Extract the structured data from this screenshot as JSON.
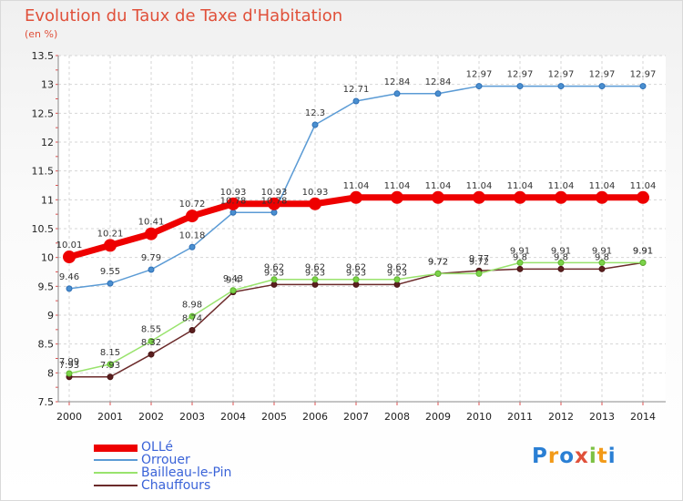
{
  "title": "Evolution du Taux de Taxe d'Habitation",
  "subtitle": "(en %)",
  "logo": "Proxiti",
  "chart_data": {
    "type": "line",
    "x": [
      "2000",
      "2001",
      "2002",
      "2003",
      "2004",
      "2005",
      "2006",
      "2007",
      "2008",
      "2009",
      "2010",
      "2011",
      "2012",
      "2013",
      "2014"
    ],
    "ylim": [
      7.5,
      13.5
    ],
    "yticks": [
      "7.5",
      "8",
      "8.5",
      "9",
      "9.5",
      "10",
      "10.5",
      "11",
      "11.5",
      "12",
      "12.5",
      "13",
      "13.5"
    ],
    "grid": true,
    "legend_position": "bottom-left",
    "series": [
      {
        "name": "OLLé",
        "color": "#ee0000",
        "values": [
          10.01,
          10.21,
          10.41,
          10.72,
          10.93,
          10.93,
          10.93,
          11.04,
          11.04,
          11.04,
          11.04,
          11.04,
          11.04,
          11.04,
          11.04
        ],
        "labels": [
          "10.01",
          "10.21",
          "10.41",
          "10.72",
          "10.93",
          "10.93",
          "10.93",
          "11.04",
          "11.04",
          "11.04",
          "11.04",
          "11.04",
          "11.04",
          "11.04",
          "11.04"
        ]
      },
      {
        "name": "Orrouer",
        "color": "#5b9bd5",
        "values": [
          9.46,
          9.55,
          9.79,
          10.18,
          10.78,
          10.78,
          12.3,
          12.71,
          12.84,
          12.84,
          12.97,
          12.97,
          12.97,
          12.97,
          12.97
        ],
        "labels": [
          "9.46",
          "9.55",
          "9.79",
          "10.18",
          "10.78",
          "10.78",
          "12.3",
          "12.71",
          "12.84",
          "12.84",
          "12.97",
          "12.97",
          "12.97",
          "12.97",
          "12.97"
        ]
      },
      {
        "name": "Bailleau-le-Pin",
        "color": "#99e36d",
        "values": [
          7.99,
          8.15,
          8.55,
          8.98,
          9.43,
          9.62,
          9.62,
          9.62,
          9.62,
          9.72,
          9.72,
          9.91,
          9.91,
          9.91,
          9.91
        ],
        "labels": [
          "7.99",
          "8.15",
          "8.55",
          "8.98",
          "9.43",
          "9.62",
          "9.62",
          "9.62",
          "9.62",
          "9.72",
          "9.72",
          "9.91",
          "9.91",
          "9.91",
          "9.91"
        ]
      },
      {
        "name": "Chauffours",
        "color": "#6b2a2a",
        "values": [
          7.93,
          7.93,
          8.32,
          8.74,
          9.4,
          9.53,
          9.53,
          9.53,
          9.53,
          9.72,
          9.77,
          9.8,
          9.8,
          9.8,
          9.91
        ],
        "labels": [
          "7.93",
          "7.93",
          "8.32",
          "8.74",
          "9.4",
          "9.53",
          "9.53",
          "9.53",
          "9.53",
          "9.72",
          "9.77",
          "9.8",
          "9.8",
          "9.8",
          "9.91"
        ]
      }
    ]
  }
}
